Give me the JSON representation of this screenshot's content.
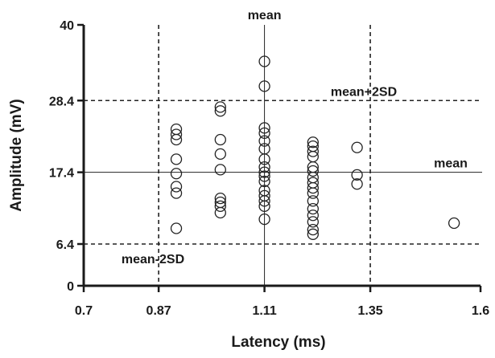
{
  "chart_data": {
    "type": "scatter",
    "title": "",
    "xlabel": "Latency (ms)",
    "ylabel": "Amplitude (mV)",
    "xlim": [
      0.7,
      1.6
    ],
    "ylim": [
      0,
      40
    ],
    "x_ticks": [
      0.7,
      0.87,
      1.11,
      1.35,
      1.6
    ],
    "y_ticks": [
      0,
      6.4,
      17.4,
      28.4,
      40
    ],
    "x_tick_labels": [
      "0.7",
      "0.87",
      "1.11",
      "1.35",
      "1.6"
    ],
    "y_tick_labels": [
      "0",
      "6.4",
      "17.4",
      "28.4",
      "40"
    ],
    "grid": false,
    "reference_lines": [
      {
        "orientation": "vertical",
        "value": 0.87,
        "style": "dashed",
        "label": ""
      },
      {
        "orientation": "vertical",
        "value": 1.11,
        "style": "solid",
        "label": "mean"
      },
      {
        "orientation": "vertical",
        "value": 1.35,
        "style": "dashed",
        "label": ""
      },
      {
        "orientation": "horizontal",
        "value": 28.4,
        "style": "dashed",
        "label": "mean+2SD"
      },
      {
        "orientation": "horizontal",
        "value": 17.4,
        "style": "solid",
        "label": "mean"
      },
      {
        "orientation": "horizontal",
        "value": 6.4,
        "style": "dashed",
        "label": "mean-2SD"
      }
    ],
    "marker": "open-circle",
    "points": [
      {
        "x": 0.91,
        "y": 24.0
      },
      {
        "x": 0.91,
        "y": 23.2
      },
      {
        "x": 0.91,
        "y": 22.4
      },
      {
        "x": 0.91,
        "y": 19.4
      },
      {
        "x": 0.91,
        "y": 17.2
      },
      {
        "x": 0.91,
        "y": 15.2
      },
      {
        "x": 0.91,
        "y": 14.2
      },
      {
        "x": 0.91,
        "y": 8.8
      },
      {
        "x": 1.01,
        "y": 27.4
      },
      {
        "x": 1.01,
        "y": 26.8
      },
      {
        "x": 1.01,
        "y": 22.4
      },
      {
        "x": 1.01,
        "y": 20.2
      },
      {
        "x": 1.01,
        "y": 17.8
      },
      {
        "x": 1.01,
        "y": 13.4
      },
      {
        "x": 1.01,
        "y": 12.8
      },
      {
        "x": 1.01,
        "y": 12.2
      },
      {
        "x": 1.01,
        "y": 11.2
      },
      {
        "x": 1.11,
        "y": 34.4
      },
      {
        "x": 1.11,
        "y": 30.6
      },
      {
        "x": 1.11,
        "y": 24.2
      },
      {
        "x": 1.11,
        "y": 23.4
      },
      {
        "x": 1.11,
        "y": 22.2
      },
      {
        "x": 1.11,
        "y": 21.0
      },
      {
        "x": 1.11,
        "y": 19.4
      },
      {
        "x": 1.11,
        "y": 18.2
      },
      {
        "x": 1.11,
        "y": 17.4
      },
      {
        "x": 1.11,
        "y": 16.8
      },
      {
        "x": 1.11,
        "y": 16.0
      },
      {
        "x": 1.11,
        "y": 14.6
      },
      {
        "x": 1.11,
        "y": 13.8
      },
      {
        "x": 1.11,
        "y": 13.0
      },
      {
        "x": 1.11,
        "y": 12.2
      },
      {
        "x": 1.11,
        "y": 10.2
      },
      {
        "x": 1.22,
        "y": 22.0
      },
      {
        "x": 1.22,
        "y": 21.4
      },
      {
        "x": 1.22,
        "y": 20.6
      },
      {
        "x": 1.22,
        "y": 19.8
      },
      {
        "x": 1.22,
        "y": 18.2
      },
      {
        "x": 1.22,
        "y": 17.6
      },
      {
        "x": 1.22,
        "y": 16.6
      },
      {
        "x": 1.22,
        "y": 15.8
      },
      {
        "x": 1.22,
        "y": 15.0
      },
      {
        "x": 1.22,
        "y": 14.2
      },
      {
        "x": 1.22,
        "y": 13.0
      },
      {
        "x": 1.22,
        "y": 11.8
      },
      {
        "x": 1.22,
        "y": 10.8
      },
      {
        "x": 1.22,
        "y": 9.8
      },
      {
        "x": 1.22,
        "y": 8.6
      },
      {
        "x": 1.22,
        "y": 7.9
      },
      {
        "x": 1.32,
        "y": 21.2
      },
      {
        "x": 1.32,
        "y": 17.0
      },
      {
        "x": 1.32,
        "y": 15.6
      },
      {
        "x": 1.54,
        "y": 9.6
      }
    ]
  }
}
